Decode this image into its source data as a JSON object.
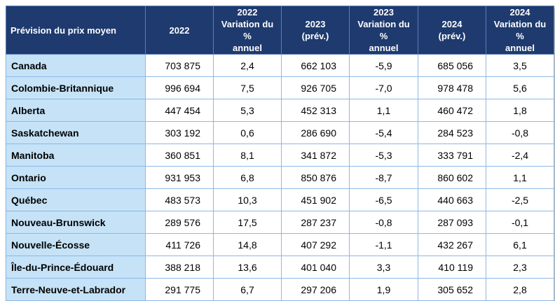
{
  "table": {
    "headers": [
      [
        "Prévision du prix moyen"
      ],
      [
        "2022"
      ],
      [
        "2022",
        "Variation du %",
        "annuel"
      ],
      [
        "2023",
        "(prév.)"
      ],
      [
        "2023",
        "Variation du %",
        "annuel"
      ],
      [
        "2024",
        "(prév.)"
      ],
      [
        "2024",
        "Variation du %",
        "annuel"
      ]
    ],
    "rows": [
      [
        "Canada",
        "703 875",
        "2,4",
        "662 103",
        "-5,9",
        "685 056",
        "3,5"
      ],
      [
        "Colombie-Britannique",
        "996 694",
        "7,5",
        "926 705",
        "-7,0",
        "978 478",
        "5,6"
      ],
      [
        "Alberta",
        "447 454",
        "5,3",
        "452 313",
        "1,1",
        "460 472",
        "1,8"
      ],
      [
        "Saskatchewan",
        "303 192",
        "0,6",
        "286 690",
        "-5,4",
        "284 523",
        "-0,8"
      ],
      [
        "Manitoba",
        "360 851",
        "8,1",
        "341 872",
        "-5,3",
        "333 791",
        "-2,4"
      ],
      [
        "Ontario",
        "931 953",
        "6,8",
        "850 876",
        "-8,7",
        "860 602",
        "1,1"
      ],
      [
        "Québec",
        "483 573",
        "10,3",
        "451 902",
        "-6,5",
        "440 663",
        "-2,5"
      ],
      [
        "Nouveau-Brunswick",
        "289 576",
        "17,5",
        "287 237",
        "-0,8",
        "287 093",
        "-0,1"
      ],
      [
        "Nouvelle-Écosse",
        "411 726",
        "14,8",
        "407 292",
        "-1,1",
        "432 267",
        "6,1"
      ],
      [
        "Île-du-Prince-Édouard",
        "388 218",
        "13,6",
        "401 040",
        "3,3",
        "410 119",
        "2,3"
      ],
      [
        "Terre-Neuve-et-Labrador",
        "291 775",
        "6,7",
        "297 206",
        "1,9",
        "305 652",
        "2,8"
      ]
    ]
  },
  "colors": {
    "header_bg": "#1e3a6e",
    "header_text": "#ffffff",
    "label_cell_bg": "#c5e2f7",
    "border": "#8db8e6"
  }
}
